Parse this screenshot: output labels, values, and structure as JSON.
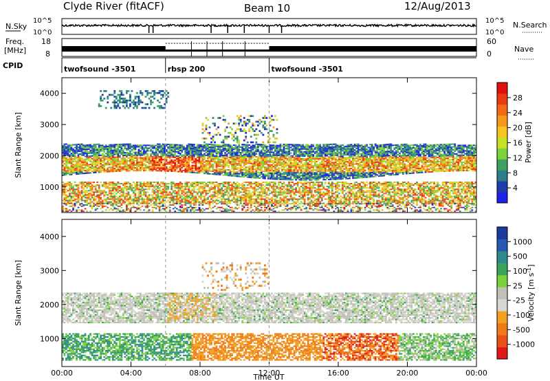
{
  "header": {
    "station": "Clyde River (fitACF)",
    "beam": "Beam 10",
    "date": "12/Aug/2013"
  },
  "top_panels": {
    "nsky_label": "N.Sky",
    "nsearch_label": "N.Search",
    "nsky_ticks": [
      "10^5",
      "10^0"
    ],
    "freq_label_1": "Freq.",
    "freq_label_2": "[MHz]",
    "freq_ticks": [
      "18",
      "8"
    ],
    "nave_label": "Nave",
    "nave_ticks": [
      "60",
      "0"
    ],
    "cpid_label": "CPID",
    "cpid_segments": [
      {
        "start_hour": 0,
        "end_hour": 6,
        "label": "twofsound -3501"
      },
      {
        "start_hour": 6,
        "end_hour": 12,
        "label": "rbsp 200"
      },
      {
        "start_hour": 12,
        "end_hour": 24,
        "label": "twofsound -3501"
      }
    ]
  },
  "colors": {
    "power_scale": [
      "#1e22e6",
      "#1f3fa8",
      "#2e7d8a",
      "#3fa066",
      "#7fd23c",
      "#c8e026",
      "#f8c421",
      "#f59a1c",
      "#f26a16",
      "#e93a14",
      "#e01010"
    ],
    "velocity_scale": [
      "#1c3a9e",
      "#245ab0",
      "#2e8a8c",
      "#3aa55a",
      "#7dd23a",
      "#c0c0b8",
      "#d8d8d0",
      "#f2a020",
      "#f07a18",
      "#e8501a",
      "#e01818"
    ]
  },
  "chart_data": [
    {
      "type": "heatmap",
      "panel": "power",
      "title": "",
      "xlabel": "Time UT",
      "ylabel": "Slant Range [km]",
      "xlim": [
        0,
        24
      ],
      "ylim": [
        180,
        4500
      ],
      "x_tick_labels": [
        "00:00",
        "04:00",
        "08:00",
        "12:00",
        "16:00",
        "20:00",
        "00:00"
      ],
      "x_ticks_hours": [
        0,
        4,
        8,
        12,
        16,
        20,
        24
      ],
      "y_ticks": [
        1000,
        2000,
        3000,
        4000
      ],
      "colorbar": {
        "label": "Power [dB]",
        "ticks": [
          4,
          8,
          12,
          16,
          20,
          24,
          28
        ],
        "range": [
          0,
          30
        ]
      },
      "bands": [
        {
          "name": "",
          "hours": [
            0,
            24
          ],
          "range_km": [
            1400,
            2300
          ],
          "level": 18
        },
        {
          "name": "",
          "hours": [
            0,
            24
          ],
          "range_km": [
            500,
            1100
          ],
          "level": 20
        },
        {
          "name": "",
          "hours": [
            2,
            6
          ],
          "range_km": [
            3600,
            4100
          ],
          "level": 6
        }
      ]
    },
    {
      "type": "heatmap",
      "panel": "velocity",
      "title": "",
      "xlabel": "Time UT",
      "ylabel": "Slant Range [km]",
      "xlim": [
        0,
        24
      ],
      "ylim": [
        180,
        4500
      ],
      "x_tick_labels": [
        "00:00",
        "04:00",
        "08:00",
        "12:00",
        "16:00",
        "20:00",
        "00:00"
      ],
      "x_ticks_hours": [
        0,
        4,
        8,
        12,
        16,
        20,
        24
      ],
      "y_ticks": [
        1000,
        2000,
        3000,
        4000
      ],
      "colorbar": {
        "label": "Velocity [m s^-1]",
        "ticks": [
          "1000",
          "500",
          "100",
          "25",
          "-25",
          "-100",
          "-500",
          "-1000"
        ]
      },
      "bands": [
        {
          "name": "",
          "hours": [
            0,
            24
          ],
          "range_km": [
            1500,
            2300
          ],
          "value_ms": 0
        },
        {
          "name": "",
          "hours": [
            0,
            8
          ],
          "range_km": [
            500,
            1100
          ],
          "value_ms": 150
        },
        {
          "name": "",
          "hours": [
            8,
            20
          ],
          "range_km": [
            300,
            1000
          ],
          "value_ms": -300
        }
      ]
    }
  ]
}
